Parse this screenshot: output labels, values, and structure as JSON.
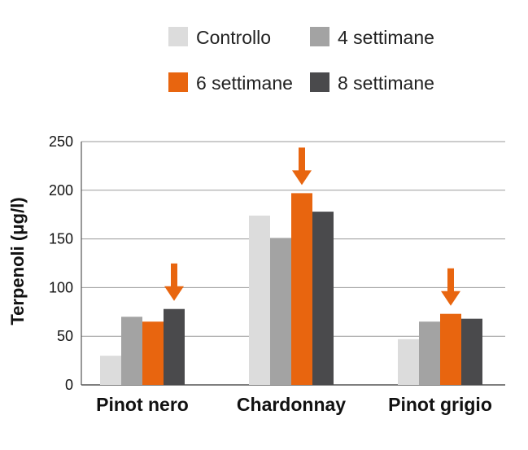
{
  "chart_data": {
    "type": "bar",
    "categories": [
      "Pinot nero",
      "Chardonnay",
      "Pinot grigio"
    ],
    "series": [
      {
        "name": "Controllo",
        "values": [
          30,
          174,
          47
        ],
        "color": "#dcdcdc"
      },
      {
        "name": "4 settimane",
        "values": [
          70,
          151,
          65
        ],
        "color": "#a3a3a3"
      },
      {
        "name": "6 settimane",
        "values": [
          65,
          197,
          73
        ],
        "color": "#e8650f"
      },
      {
        "name": "8 settimane",
        "values": [
          78,
          178,
          68
        ],
        "color": "#4a4a4c"
      }
    ],
    "title": "",
    "xlabel": "",
    "ylabel": "Terpenoli (μg/l)",
    "ylim": [
      0,
      250
    ],
    "yticks": [
      "0",
      "50",
      "100",
      "150",
      "200",
      "250"
    ],
    "ytick_values": [
      0,
      50,
      100,
      150,
      200,
      250
    ],
    "grid": true,
    "legend_position": "top",
    "highlight": {
      "series": "6 settimane",
      "marker": "down-arrow",
      "arrow_color": "#e8650f"
    }
  }
}
